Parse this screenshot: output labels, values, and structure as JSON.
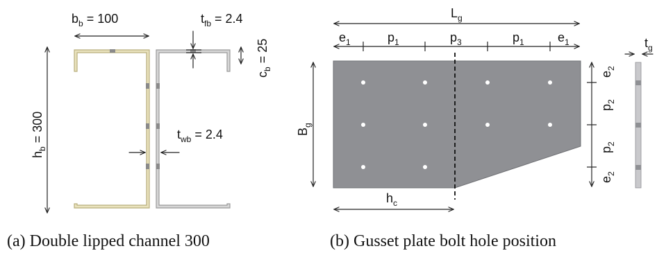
{
  "channel": {
    "bb_sym": "b",
    "bb_sub": "b",
    "bb_val": " = 100",
    "tfb_sym": "t",
    "tfb_sub": "fb",
    "tfb_val": " = 2.4",
    "cb_sym": "c",
    "cb_sub": "b",
    "cb_val": " = 25",
    "hb_sym": "h",
    "hb_sub": "b",
    "hb_val": " = 300",
    "twb_sym": "t",
    "twb_sub": "wb",
    "twb_val": " = 2.4",
    "colors": {
      "left_channel": "#c8bf92",
      "left_channel_fill": "#e9e2bd",
      "right_channel": "#a9a9a9",
      "right_channel_fill": "#d6d6d6"
    }
  },
  "gusset": {
    "Lg_sym": "L",
    "Lg_sub": "g",
    "e1_sym": "e",
    "e1_sub": "1",
    "p1_sym": "p",
    "p1_sub": "1",
    "p3_sym": "p",
    "p3_sub": "3",
    "e2_sym": "e",
    "e2_sub": "2",
    "p2_sym": "p",
    "p2_sub": "2",
    "Bg_sym": "B",
    "Bg_sub": "g",
    "hc_sym": "h",
    "hc_sub": "c",
    "tg_sym": "t",
    "tg_sub": "g",
    "colors": {
      "plate": "#8f9094",
      "plate_edge": "#6e6f73",
      "hole": "#ffffff"
    }
  },
  "captions": {
    "a": "(a) Double lipped channel 300",
    "b": "(b) Gusset plate bolt hole position"
  }
}
